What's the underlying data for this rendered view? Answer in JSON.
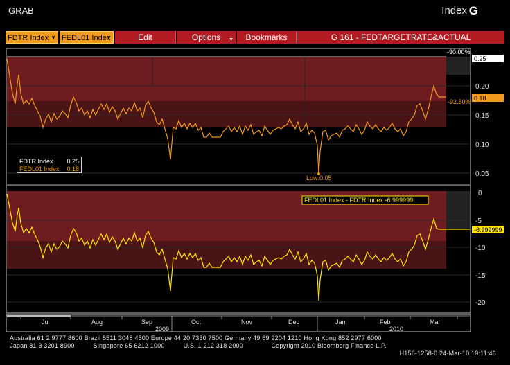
{
  "window": {
    "title_left": "GRAB",
    "title_right": "Index",
    "brand": "G"
  },
  "toolbar": {
    "field1": "FDTR Index",
    "field2": "FEDL01 Index",
    "edit": "Edit",
    "options": "Options",
    "bookmarks": "Bookmarks",
    "title": "G 161 - FEDTARGETRATE&ACTUAL"
  },
  "top_panel": {
    "legend": [
      {
        "name": "FDTR Index",
        "value": "0.25",
        "color": "#ffffff"
      },
      {
        "name": "FEDL01 Index",
        "value": "0.18",
        "color": "#f29a1e"
      }
    ],
    "low_label": "Low:0.05",
    "pct_top": "-90.00%",
    "pct_mid": "-92.80%",
    "last_fdtr": "0.25",
    "last_fedl": "0.18",
    "y_ticks": [
      "0.20",
      "0.15",
      "0.10",
      "0.05"
    ]
  },
  "bottom_panel": {
    "legend": "FEDL01 Index - FDTR Index  -6.999999",
    "last": "-6.999999",
    "y_ticks": [
      "0",
      "-5",
      "-10",
      "-15",
      "-20"
    ]
  },
  "x_axis": {
    "months": [
      "Jul",
      "Aug",
      "Sep",
      "Oct",
      "Nov",
      "Dec",
      "Jan",
      "Feb",
      "Mar"
    ],
    "years": [
      "2009",
      "2010"
    ]
  },
  "footer": {
    "line1": "Australia 61 2 9777 8600 Brazil 5511 3048 4500 Europe 44 20 7330 7500 Germany 49 69 9204 1210 Hong Kong 852 2977 6000",
    "line2": "Japan 81 3 3201 8900          Singapore 65 6212 1000          U.S. 1 212 318 2000               Copyright 2010 Bloomberg Finance L.P.",
    "line3": "H156-1258-0 24-Mar-10 19:11:46"
  },
  "chart_data": [
    {
      "type": "line",
      "title": "G 161 - FEDTARGETRATE&ACTUAL",
      "ylim": [
        0.02,
        0.27
      ],
      "series": [
        {
          "name": "FDTR Index",
          "constant": 0.25
        },
        {
          "name": "FEDL01 Index",
          "x_month_index": [
            0,
            0.1,
            0.2,
            0.35,
            0.5,
            0.65,
            0.8,
            1.0,
            1.2,
            1.4,
            1.6,
            1.8,
            2.0,
            2.2,
            2.4,
            2.6,
            2.8,
            3.0,
            3.2,
            3.4,
            3.6,
            3.8,
            4.0,
            4.2,
            4.4,
            4.6,
            4.8,
            5.0,
            5.2,
            5.4,
            5.6,
            5.8,
            6.0,
            6.2,
            6.4,
            6.6,
            6.8,
            7.0,
            7.2,
            7.4,
            7.6,
            7.8,
            8.0,
            8.2,
            8.5
          ],
          "values": [
            0.22,
            0.2,
            0.19,
            0.16,
            0.22,
            0.17,
            0.15,
            0.13,
            0.16,
            0.14,
            0.15,
            0.17,
            0.16,
            0.15,
            0.14,
            0.16,
            0.14,
            0.15,
            0.13,
            0.07,
            0.12,
            0.13,
            0.12,
            0.13,
            0.11,
            0.12,
            0.12,
            0.13,
            0.13,
            0.12,
            0.14,
            0.13,
            0.12,
            0.05,
            0.12,
            0.12,
            0.13,
            0.13,
            0.12,
            0.13,
            0.13,
            0.12,
            0.14,
            0.2,
            0.18
          ]
        }
      ]
    },
    {
      "type": "line",
      "title": "FEDL01 Index - FDTR Index",
      "ylim": [
        -22,
        0
      ],
      "series": [
        {
          "name": "FEDL01 Index - FDTR Index",
          "last": -6.999999
        }
      ]
    }
  ]
}
